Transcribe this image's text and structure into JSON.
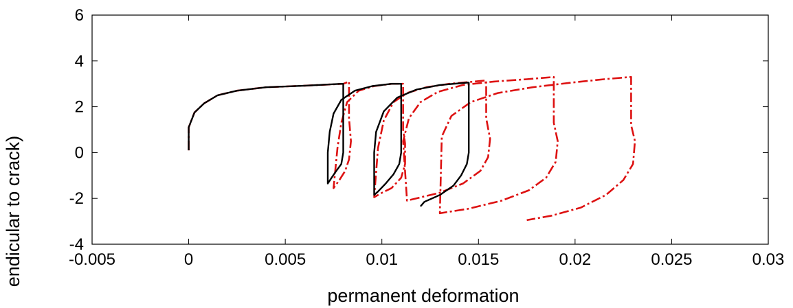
{
  "chart_data": {
    "type": "line",
    "title": "",
    "xlabel": "permanent deformation",
    "ylabel": "endicular to crack)",
    "xlim": [
      -0.005,
      0.03
    ],
    "ylim": [
      -4,
      6
    ],
    "xticks": [
      -0.005,
      0,
      0.005,
      0.01,
      0.015,
      0.02,
      0.025,
      0.03
    ],
    "xtick_labels": [
      "-0.005",
      "0",
      "0.005",
      "0.01",
      "0.015",
      "0.02",
      "0.025",
      "0.03"
    ],
    "yticks": [
      -4,
      -2,
      0,
      2,
      4,
      6
    ],
    "ytick_labels": [
      "-4",
      "-2",
      "0",
      "2",
      "4",
      "6"
    ],
    "grid": false,
    "legend": "none",
    "series": [
      {
        "color": "#000000",
        "style": "solid",
        "x": [
          0,
          0,
          0.0003,
          0.0008,
          0.0015,
          0.0025,
          0.004,
          0.006,
          0.0079,
          0.008,
          0.008,
          0.008,
          0.0079,
          0.0076,
          0.0074,
          0.0072,
          0.0072,
          0.0073,
          0.0075,
          0.0079,
          0.0086,
          0.0095,
          0.0105,
          0.011,
          0.011,
          0.011,
          0.0109,
          0.0106,
          0.0102,
          0.0098,
          0.0096,
          0.0096,
          0.0097,
          0.0101,
          0.0108,
          0.0118,
          0.013,
          0.0144,
          0.0145,
          0.0145,
          0.0145,
          0.0144,
          0.0141,
          0.0137,
          0.013,
          0.0122,
          0.012
        ],
        "y": [
          0.1,
          1.1,
          1.75,
          2.15,
          2.5,
          2.7,
          2.85,
          2.92,
          3.0,
          3.0,
          1.5,
          0.0,
          -0.5,
          -0.85,
          -1.1,
          -1.35,
          0.0,
          0.9,
          1.7,
          2.3,
          2.7,
          2.9,
          3.0,
          3.0,
          1.0,
          0.0,
          -0.5,
          -0.95,
          -1.35,
          -1.7,
          -1.85,
          0.0,
          0.9,
          1.8,
          2.4,
          2.75,
          2.95,
          3.05,
          3.05,
          1.0,
          0.0,
          -0.5,
          -1.0,
          -1.45,
          -1.85,
          -2.15,
          -2.35
        ]
      },
      {
        "color": "#dd1111",
        "style": "dashdot",
        "x": [
          0,
          0,
          0.0003,
          0.0008,
          0.0015,
          0.0025,
          0.004,
          0.006,
          0.008,
          0.0083,
          0.0083,
          0.0084,
          0.0083,
          0.0081,
          0.0078,
          0.0075,
          0.0077,
          0.0079,
          0.0082,
          0.0088,
          0.0096,
          0.0105,
          0.0111,
          0.0111,
          0.0112,
          0.0112,
          0.011,
          0.0105,
          0.0099,
          0.0096,
          0.0098,
          0.0101,
          0.0106,
          0.0113,
          0.0123,
          0.0135,
          0.0148,
          0.0154,
          0.0154,
          0.0156,
          0.0155,
          0.0151,
          0.0142,
          0.013,
          0.0113,
          0.0111,
          0.0114,
          0.012,
          0.0129,
          0.0142,
          0.0158,
          0.0175,
          0.0189,
          0.0189,
          0.0191,
          0.019,
          0.0185,
          0.0176,
          0.0162,
          0.0145,
          0.013,
          0.0131,
          0.0136,
          0.0146,
          0.016,
          0.0178,
          0.0198,
          0.0215,
          0.0229,
          0.0229,
          0.0231,
          0.023,
          0.0225,
          0.0216,
          0.0203,
          0.0188,
          0.0175
        ],
        "y": [
          0.1,
          1.1,
          1.75,
          2.15,
          2.5,
          2.7,
          2.85,
          2.92,
          3.0,
          3.1,
          1.5,
          0.5,
          -0.3,
          -0.8,
          -1.2,
          -1.55,
          0.2,
          1.3,
          2.2,
          2.7,
          2.9,
          3.0,
          3.0,
          1.0,
          0.4,
          -0.5,
          -1.1,
          -1.55,
          -1.8,
          -1.95,
          0.2,
          1.4,
          2.2,
          2.6,
          2.85,
          3.0,
          3.1,
          3.15,
          1.5,
          0.6,
          -0.2,
          -0.8,
          -1.35,
          -1.75,
          -2.1,
          0.5,
          1.5,
          2.2,
          2.65,
          2.95,
          3.1,
          3.2,
          3.3,
          1.3,
          0.5,
          -0.4,
          -1.1,
          -1.65,
          -2.1,
          -2.45,
          -2.65,
          0.7,
          1.6,
          2.2,
          2.6,
          2.85,
          3.05,
          3.2,
          3.3,
          1.2,
          0.5,
          -0.5,
          -1.2,
          -1.85,
          -2.4,
          -2.75,
          -2.95
        ]
      }
    ]
  }
}
